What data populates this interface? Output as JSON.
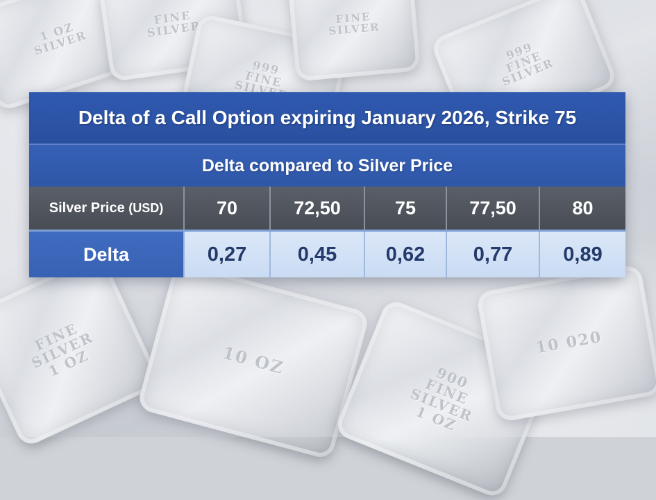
{
  "chart_data": {
    "type": "table",
    "title": "Delta of a Call Option expiring January 2026, Strike 75",
    "subtitle": "Delta compared to Silver Price",
    "row_labels": {
      "price": "Silver Price",
      "price_unit": "(USD)",
      "delta": "Delta"
    },
    "columns": [
      "70",
      "72,50",
      "75",
      "77,50",
      "80"
    ],
    "x": [
      70,
      72.5,
      75,
      77.5,
      80
    ],
    "values_text": [
      "0,27",
      "0,45",
      "0,62",
      "0,77",
      "0,89"
    ],
    "values": [
      0.27,
      0.45,
      0.62,
      0.77,
      0.89
    ]
  },
  "colors": {
    "title_bar": "#2f59b0",
    "header_row": "#50555e",
    "delta_label_cell": "#3f6bc0",
    "delta_value_cell": "#d3e2f6",
    "delta_value_text": "#233a6b"
  },
  "background": {
    "bars": [
      [
        "1 OZ",
        "SILVER"
      ],
      [
        "FINE",
        "SILVER"
      ],
      [
        "999",
        "FINE",
        "SILVER"
      ],
      [
        "FINE",
        "SILVER"
      ],
      [
        "999",
        "FINE",
        "SILVER"
      ],
      [
        "FINE",
        "SILVER",
        "1 OZ"
      ],
      [
        "10 OZ"
      ],
      [
        "900",
        "FINE",
        "SILVER",
        "1 OZ"
      ],
      [
        "10 020"
      ]
    ]
  }
}
